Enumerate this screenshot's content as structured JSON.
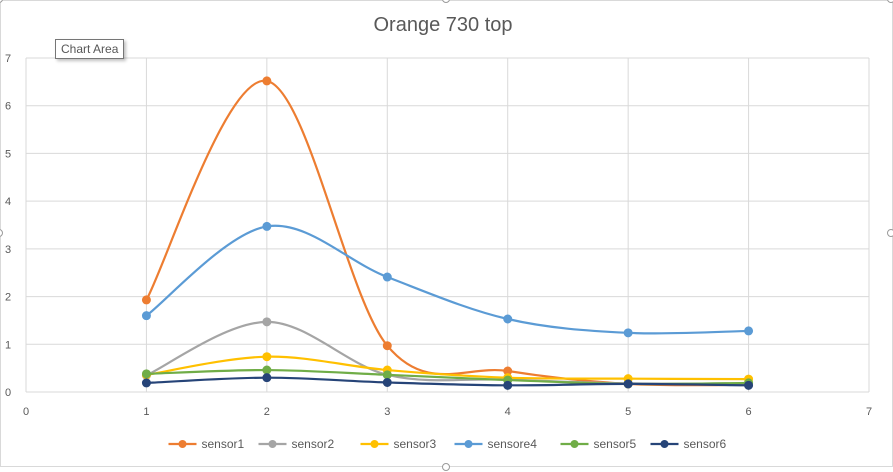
{
  "tooltip": "Chart Area",
  "colors": {
    "grid": "#d9d9d9",
    "axis_text": "#595959",
    "title_text": "#595959",
    "frame_border": "#d9d9d9"
  },
  "chart_data": {
    "type": "scatter",
    "title": "Orange 730 top",
    "xlabel": "",
    "ylabel": "",
    "xlim": [
      0,
      7
    ],
    "ylim": [
      0,
      7
    ],
    "xticks": [
      "0",
      "1",
      "2",
      "3",
      "4",
      "5",
      "6",
      "7"
    ],
    "yticks": [
      "0",
      "1",
      "2",
      "3",
      "4",
      "5",
      "6",
      "7"
    ],
    "grid": true,
    "legend_position": "bottom",
    "smooth_lines": true,
    "x": [
      1,
      2,
      3,
      4,
      5,
      6
    ],
    "series": [
      {
        "name": "sensor1",
        "color": "#ED7D31",
        "values": [
          1.93,
          6.52,
          0.97,
          0.44,
          0.17,
          0.15
        ]
      },
      {
        "name": "sensor2",
        "color": "#A5A5A5",
        "values": [
          0.35,
          1.47,
          0.36,
          0.26,
          0.18,
          0.18
        ]
      },
      {
        "name": "sensor3",
        "color": "#FFC000",
        "values": [
          0.36,
          0.74,
          0.46,
          0.3,
          0.28,
          0.27
        ]
      },
      {
        "name": "sensore4",
        "color": "#5B9BD5",
        "values": [
          1.6,
          3.47,
          2.41,
          1.53,
          1.24,
          1.28
        ]
      },
      {
        "name": "sensor5",
        "color": "#70AD47",
        "values": [
          0.38,
          0.46,
          0.36,
          0.25,
          0.17,
          0.19
        ]
      },
      {
        "name": "sensor6",
        "color": "#264478",
        "values": [
          0.19,
          0.3,
          0.2,
          0.14,
          0.17,
          0.14
        ]
      }
    ]
  }
}
